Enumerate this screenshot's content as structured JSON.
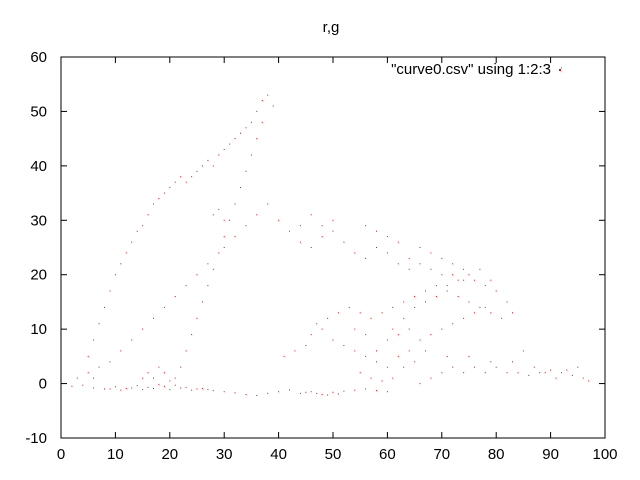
{
  "chart_data": {
    "type": "scatter",
    "title": "r,g",
    "xlabel": "",
    "ylabel": "",
    "xlim": [
      0,
      100
    ],
    "ylim": [
      -10,
      60
    ],
    "x_ticks": [
      0,
      10,
      20,
      30,
      40,
      50,
      60,
      70,
      80,
      90,
      100
    ],
    "y_ticks": [
      -10,
      0,
      10,
      20,
      30,
      40,
      50,
      60
    ],
    "x_tick_labels": [
      "0",
      "10",
      "20",
      "30",
      "40",
      "50",
      "60",
      "70",
      "80",
      "90",
      "100"
    ],
    "y_tick_labels": [
      "-10",
      "0",
      "10",
      "20",
      "30",
      "40",
      "50",
      "60"
    ],
    "grid": false,
    "legend_position": "top-right",
    "colors": {
      "series": "#ff0000",
      "frame": "#000000"
    },
    "series": [
      {
        "name": "\"curve0.csv\" using 1:2:3",
        "marker": "dot",
        "points": [
          [
            2,
            -0.5
          ],
          [
            4,
            -0.3
          ],
          [
            6,
            -0.8
          ],
          [
            8,
            -1
          ],
          [
            10,
            -0.6
          ],
          [
            12,
            -0.9
          ],
          [
            14,
            -0.4
          ],
          [
            16,
            -0.7
          ],
          [
            18,
            -0.2
          ],
          [
            20,
            -1.1
          ],
          [
            22,
            -0.8
          ],
          [
            24,
            -1.2
          ],
          [
            26,
            -0.9
          ],
          [
            28,
            -1.3
          ],
          [
            30,
            -1.5
          ],
          [
            32,
            -1.7
          ],
          [
            34,
            -2
          ],
          [
            36,
            -2.2
          ],
          [
            38,
            -1.8
          ],
          [
            40,
            -1.5
          ],
          [
            42,
            -1.2
          ],
          [
            44,
            -1.8
          ],
          [
            46,
            -1.5
          ],
          [
            48,
            -2
          ],
          [
            50,
            -1.6
          ],
          [
            52,
            -1.4
          ],
          [
            54,
            -1.2
          ],
          [
            56,
            -1
          ],
          [
            58,
            -1.3
          ],
          [
            60,
            -1.5
          ],
          [
            3,
            1
          ],
          [
            5,
            2
          ],
          [
            5,
            5
          ],
          [
            6,
            8
          ],
          [
            7,
            11
          ],
          [
            8,
            14
          ],
          [
            9,
            17
          ],
          [
            10,
            20
          ],
          [
            11,
            22
          ],
          [
            12,
            24
          ],
          [
            13,
            26
          ],
          [
            14,
            28
          ],
          [
            15,
            29
          ],
          [
            16,
            31
          ],
          [
            17,
            33
          ],
          [
            18,
            34
          ],
          [
            19,
            35
          ],
          [
            20,
            36
          ],
          [
            21,
            37
          ],
          [
            22,
            38
          ],
          [
            23,
            37
          ],
          [
            24,
            38
          ],
          [
            25,
            39
          ],
          [
            26,
            40
          ],
          [
            27,
            41
          ],
          [
            28,
            40
          ],
          [
            29,
            42
          ],
          [
            30,
            43
          ],
          [
            31,
            44
          ],
          [
            32,
            45
          ],
          [
            33,
            46
          ],
          [
            34,
            47
          ],
          [
            35,
            48
          ],
          [
            36,
            50
          ],
          [
            37,
            52
          ],
          [
            38,
            53
          ],
          [
            39,
            51
          ],
          [
            37,
            48
          ],
          [
            36,
            45
          ],
          [
            35,
            42
          ],
          [
            34,
            39
          ],
          [
            33,
            36
          ],
          [
            32,
            33
          ],
          [
            31,
            30
          ],
          [
            30,
            27
          ],
          [
            29,
            24
          ],
          [
            28,
            21
          ],
          [
            27,
            18
          ],
          [
            26,
            15
          ],
          [
            25,
            12
          ],
          [
            24,
            9
          ],
          [
            23,
            6
          ],
          [
            22,
            3
          ],
          [
            21,
            1
          ],
          [
            20,
            0.5
          ],
          [
            19,
            2
          ],
          [
            18,
            3
          ],
          [
            17,
            1
          ],
          [
            16,
            2
          ],
          [
            15,
            1
          ],
          [
            42,
            28
          ],
          [
            44,
            26
          ],
          [
            46,
            25
          ],
          [
            48,
            27
          ],
          [
            50,
            28
          ],
          [
            52,
            26
          ],
          [
            54,
            24
          ],
          [
            56,
            23
          ],
          [
            58,
            25
          ],
          [
            60,
            24
          ],
          [
            62,
            22
          ],
          [
            64,
            21
          ],
          [
            66,
            22
          ],
          [
            68,
            21
          ],
          [
            70,
            20
          ],
          [
            72,
            20
          ],
          [
            74,
            19
          ],
          [
            76,
            19
          ],
          [
            78,
            18
          ],
          [
            80,
            17
          ],
          [
            82,
            15
          ],
          [
            83,
            13
          ],
          [
            81,
            12
          ],
          [
            79,
            13
          ],
          [
            77,
            14
          ],
          [
            75,
            15
          ],
          [
            73,
            16
          ],
          [
            71,
            17
          ],
          [
            69,
            18
          ],
          [
            67,
            17
          ],
          [
            65,
            16
          ],
          [
            63,
            15
          ],
          [
            61,
            14
          ],
          [
            59,
            13
          ],
          [
            57,
            12
          ],
          [
            55,
            13
          ],
          [
            53,
            14
          ],
          [
            51,
            13
          ],
          [
            49,
            12
          ],
          [
            47,
            11
          ],
          [
            45,
            7
          ],
          [
            43,
            6
          ],
          [
            41,
            5
          ],
          [
            46,
            9
          ],
          [
            48,
            10
          ],
          [
            50,
            8
          ],
          [
            52,
            7
          ],
          [
            54,
            6
          ],
          [
            56,
            5
          ],
          [
            58,
            4
          ],
          [
            60,
            3
          ],
          [
            62,
            5
          ],
          [
            64,
            6
          ],
          [
            66,
            8
          ],
          [
            68,
            9
          ],
          [
            70,
            10
          ],
          [
            72,
            11
          ],
          [
            74,
            12
          ],
          [
            76,
            13
          ],
          [
            78,
            14
          ],
          [
            61,
            10
          ],
          [
            63,
            12
          ],
          [
            65,
            14
          ],
          [
            67,
            15
          ],
          [
            69,
            16
          ],
          [
            71,
            18
          ],
          [
            73,
            19
          ],
          [
            75,
            20
          ],
          [
            77,
            21
          ],
          [
            79,
            19
          ],
          [
            55,
            2
          ],
          [
            57,
            1
          ],
          [
            59,
            0.5
          ],
          [
            61,
            1
          ],
          [
            58,
            6
          ],
          [
            60,
            8
          ],
          [
            62,
            9
          ],
          [
            64,
            10
          ],
          [
            56,
            9
          ],
          [
            54,
            10
          ],
          [
            66,
            0
          ],
          [
            68,
            1
          ],
          [
            70,
            2
          ],
          [
            72,
            3
          ],
          [
            74,
            2
          ],
          [
            76,
            3
          ],
          [
            78,
            2
          ],
          [
            80,
            3
          ],
          [
            82,
            2
          ],
          [
            84,
            2
          ],
          [
            86,
            1.5
          ],
          [
            88,
            2
          ],
          [
            90,
            2.5
          ],
          [
            92,
            2
          ],
          [
            94,
            1.5
          ],
          [
            96,
            1
          ],
          [
            97,
            0.5
          ],
          [
            95,
            3
          ],
          [
            93,
            2.5
          ],
          [
            91,
            1
          ],
          [
            85,
            6
          ],
          [
            83,
            4
          ],
          [
            87,
            3
          ],
          [
            89,
            2
          ],
          [
            79,
            4
          ],
          [
            75,
            5
          ],
          [
            71,
            5
          ],
          [
            67,
            6
          ],
          [
            65,
            4
          ],
          [
            63,
            3
          ],
          [
            70,
            23
          ],
          [
            72,
            22
          ],
          [
            74,
            21
          ],
          [
            68,
            24
          ],
          [
            66,
            25
          ],
          [
            64,
            23
          ],
          [
            62,
            26
          ],
          [
            60,
            27
          ],
          [
            58,
            28
          ],
          [
            56,
            29
          ],
          [
            50,
            30
          ],
          [
            48,
            29
          ],
          [
            46,
            31
          ],
          [
            44,
            29
          ],
          [
            40,
            30
          ],
          [
            38,
            33
          ],
          [
            36,
            31
          ],
          [
            34,
            29
          ],
          [
            32,
            27
          ],
          [
            30,
            25
          ],
          [
            28,
            31
          ],
          [
            29,
            32
          ],
          [
            30,
            30
          ],
          [
            27,
            22
          ],
          [
            25,
            20
          ],
          [
            23,
            18
          ],
          [
            21,
            16
          ],
          [
            19,
            14
          ],
          [
            17,
            12
          ],
          [
            15,
            10
          ],
          [
            13,
            8
          ],
          [
            11,
            6
          ],
          [
            9,
            4
          ],
          [
            7,
            3
          ],
          [
            6,
            1
          ],
          [
            92,
            58
          ],
          [
            9,
            -1
          ],
          [
            11,
            -1.2
          ],
          [
            13,
            -0.8
          ],
          [
            15,
            -1.1
          ],
          [
            17,
            -0.9
          ],
          [
            19,
            -0.5
          ],
          [
            21,
            -0.3
          ],
          [
            23,
            -0.7
          ],
          [
            25,
            -1
          ],
          [
            27,
            -1.1
          ],
          [
            45,
            -1.6
          ],
          [
            47,
            -1.8
          ],
          [
            49,
            -2.1
          ],
          [
            51,
            -1.9
          ]
        ]
      }
    ]
  }
}
